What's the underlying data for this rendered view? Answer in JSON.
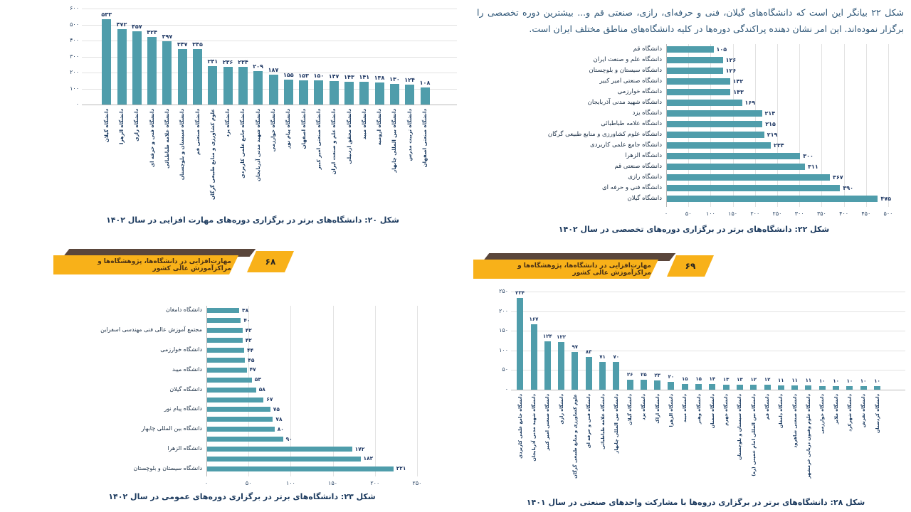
{
  "page": {
    "paragraph": "شکل ۲۲ بیانگر این است که دانشگاه‌های گیلان، فنی و حرفه‌ای، رازی، صنعتی قم و... بیشترین دوره تخصصی را برگزار نموده‌اند. این امر نشان دهنده پراکندگی دوره‌ها در کلیه دانشگاه‌های مناطق مختلف ایران است.",
    "banners": [
      {
        "text": "مهارت‌افزایی در دانشگاه‌ها، پژوهشگاه‌ها و مراکزآموزش عالی کشور",
        "page_number": "۶۸"
      },
      {
        "text": "مهارت‌افزایی در دانشگاه‌ها، پژوهشگاه‌ها و مراکزآموزش عالی کشور",
        "page_number": "۶۹"
      }
    ]
  },
  "colors": {
    "bar": "#4f9dab",
    "banner": "#f8b119",
    "banner_shadow": "#5a463b",
    "caption": "#1c3a5e",
    "value_label": "#1f3864",
    "grid": "#e2e2e2",
    "paragraph_text": "#2e5677"
  },
  "chart_data": [
    {
      "type": "bar",
      "orientation": "vertical",
      "title": "شکل ۲۰: دانشگاه‌های برتر در برگزاری دوره‌های مهارت افزایی در سال ۱۴۰۲",
      "xlabel": "",
      "ylabel": "",
      "grid": true,
      "digit_style": "persian",
      "ylim": [
        0,
        600
      ],
      "tick_step": 100,
      "categories": [
        "دانشگاه گیلان",
        "دانشگاه الزهرا",
        "دانشگاه رازی",
        "دانشگاه فنی و حرفه ای",
        "دانشگاه علامه طباطبائی",
        "دانشگاه سیستان و بلوچستان",
        "دانشگاه صنعتی قم",
        "علوم کشاورزی و منابع طبیعی گرگان",
        "دانشگاه یزد",
        "دانشگاه جامع علمی کاربردی",
        "دانشگاه شهید مدنی آذربایجان",
        "دانشگاه خوارزمی",
        "دانشگاه پیام نور",
        "دانشگاه اصفهان",
        "دانشگاه صنعتی امیر کبیر",
        "دانشگاه علم و صنعت ایران",
        "دانشگاه محقق اردبیلی",
        "دانشگاه میبد",
        "دانشگاه ارومیه",
        "دانشگاه بین المللی چابهار",
        "دانشگاه تربیت مدرس",
        "دانشگاه صنعتی اصفهان"
      ],
      "values": [
        533,
        472,
        457,
        424,
        397,
        347,
        345,
        241,
        236,
        234,
        209,
        187,
        155,
        153,
        150,
        147,
        143,
        141,
        138,
        130,
        124,
        108
      ]
    },
    {
      "type": "bar",
      "orientation": "horizontal",
      "title": "شکل ۲۲: دانشگاه‌های برتر در برگزاری دوره‌های تخصصی در سال ۱۴۰۲",
      "xlabel": "",
      "ylabel": "",
      "grid": true,
      "digit_style": "persian",
      "xlim": [
        0,
        500
      ],
      "tick_step": 50,
      "categories": [
        "دانشگاه قم",
        "دانشگاه علم و صنعت ایران",
        "دانشگاه سیستان و بلوچستان",
        "دانشگاه صنعتی امیر کبیر",
        "دانشگاه خوارزمی",
        "دانشگاه شهید مدنی آذربایجان",
        "دانشگاه یزد",
        "دانشگاه علامه طباطبائی",
        "دانشگاه علوم کشاورزی و منابع طبیعی گرگان",
        "دانشگاه جامع علمی کاربردی",
        "دانشگاه الزهرا",
        "دانشگاه صنعتی قم",
        "دانشگاه رازی",
        "دانشگاه فنی و حرفه ای",
        "دانشگاه گیلان"
      ],
      "values": [
        105,
        126,
        126,
        142,
        143,
        169,
        214,
        215,
        219,
        234,
        300,
        311,
        367,
        390,
        475
      ]
    },
    {
      "type": "bar",
      "orientation": "horizontal",
      "title": "شکل ۲۳: دانشگاه‌های برتر در برگزاری دوره‌های عمومی در سال ۱۴۰۲",
      "xlabel": "",
      "ylabel": "",
      "grid": true,
      "digit_style": "persian",
      "xlim": [
        0,
        250
      ],
      "tick_step": 50,
      "categories": [
        "دانشگاه دامغان",
        "",
        "مجتمع آموزش عالی فنی مهندسی اسفراین",
        "",
        "دانشگاه خوارزمی",
        "",
        "دانشگاه میبد",
        "",
        "دانشگاه گیلان",
        "",
        "دانشگاه پیام نور",
        "",
        "دانشگاه بین المللی چابهار",
        "",
        "دانشگاه الزهرا",
        "",
        "دانشگاه سیستان و بلوچستان"
      ],
      "values": [
        38,
        40,
        42,
        42,
        44,
        45,
        47,
        53,
        58,
        67,
        75,
        78,
        80,
        90,
        172,
        182,
        221
      ]
    },
    {
      "type": "bar",
      "orientation": "vertical",
      "title": "شکل ۲۸: دانشگاه‌های برتر در برگزاری دروه‌ها با مشارکت واحدهای صنعتی در سال ۱۴۰۱",
      "xlabel": "",
      "ylabel": "",
      "grid": true,
      "digit_style": "persian",
      "ylim": [
        0,
        250
      ],
      "tick_step": 50,
      "categories": [
        "دانشگاه جامع علمی کاربردی",
        "دانشگاه شهید مدنی آذربایجان",
        "دانشگاه صنعتی امیر کبیر",
        "دانشگاه رازی",
        "علوم کشاورزی و منابع طبیعی گرگان",
        "دانشگاه فنی و حرفه ای",
        "دانشگاه علامه طباطبائی",
        "دانشگاه بین المللی چابهار",
        "دانشگاه گیلان",
        "دانشگاه یزد",
        "دانشگاه اراک",
        "دانشگاه الزهرا",
        "دانشگاه میبد",
        "دانشگاه وهنر",
        "دانشگاه سمنان",
        "دانشگاه جهرم",
        "دانشگاه سیستان و بلوچستان",
        "دانشگاه بین المللی امام خمینی (ره)",
        "دانشگاه قم",
        "دانشگاه دامغان",
        "دانشگاه صنعتی شاهرود",
        "دانشگاه علوم وفنون دریایی خرمشهر",
        "دانشگاه خوارزمی",
        "دانشگاه ملایر",
        "دانشگاه شهرکرد",
        "دانشگاه تفرش",
        "دانشگاه کردستان"
      ],
      "values": [
        234,
        167,
        124,
        122,
        97,
        83,
        71,
        70,
        26,
        25,
        23,
        20,
        15,
        15,
        14,
        13,
        13,
        12,
        12,
        11,
        11,
        11,
        10,
        10,
        10,
        10,
        10
      ]
    }
  ]
}
